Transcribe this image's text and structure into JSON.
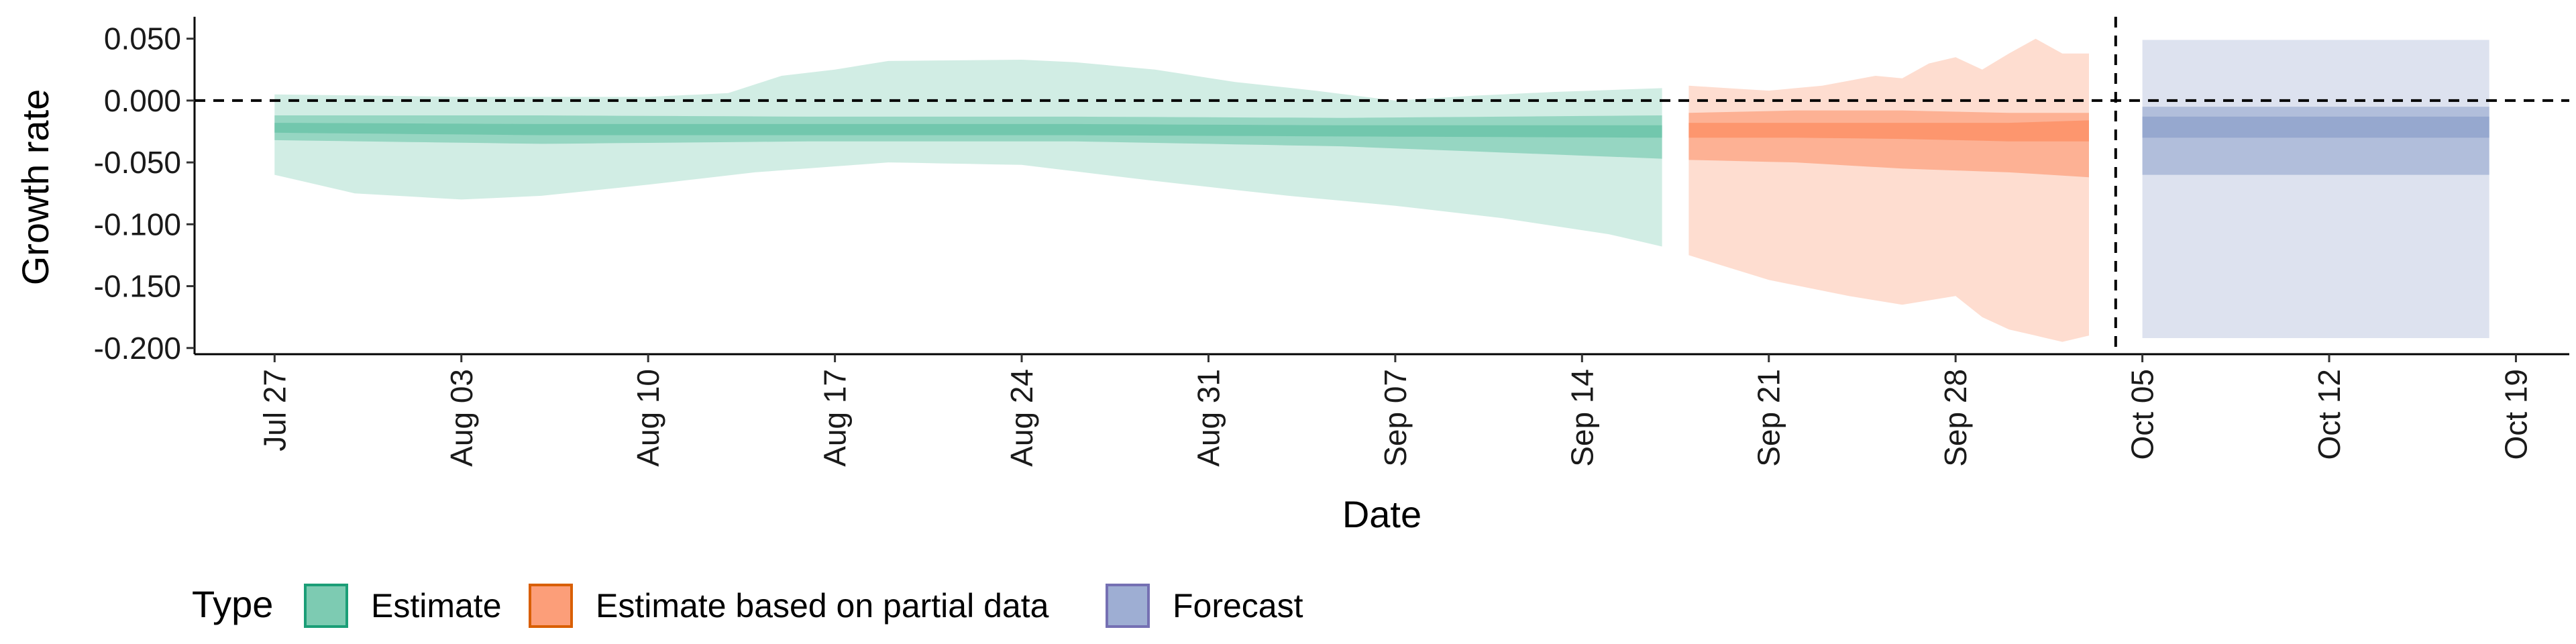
{
  "chart_data": {
    "type": "area",
    "xlabel": "Date",
    "ylabel": "Growth rate",
    "x_axis": {
      "start_date": "2020-07-24",
      "end_date": "2020-10-21",
      "ticks": [
        {
          "date": "2020-07-27",
          "label": "Jul 27"
        },
        {
          "date": "2020-08-03",
          "label": "Aug 03"
        },
        {
          "date": "2020-08-10",
          "label": "Aug 10"
        },
        {
          "date": "2020-08-17",
          "label": "Aug 17"
        },
        {
          "date": "2020-08-24",
          "label": "Aug 24"
        },
        {
          "date": "2020-08-31",
          "label": "Aug 31"
        },
        {
          "date": "2020-09-07",
          "label": "Sep 07"
        },
        {
          "date": "2020-09-14",
          "label": "Sep 14"
        },
        {
          "date": "2020-09-21",
          "label": "Sep 21"
        },
        {
          "date": "2020-09-28",
          "label": "Sep 28"
        },
        {
          "date": "2020-10-05",
          "label": "Oct 05"
        },
        {
          "date": "2020-10-12",
          "label": "Oct 12"
        },
        {
          "date": "2020-10-19",
          "label": "Oct 19"
        }
      ]
    },
    "y_axis": {
      "ylim": [
        -0.205,
        0.065
      ],
      "ticks": [
        {
          "value": 0.05,
          "label": "0.050"
        },
        {
          "value": 0.0,
          "label": "0.000"
        },
        {
          "value": -0.05,
          "label": "-0.050"
        },
        {
          "value": -0.1,
          "label": "-0.100"
        },
        {
          "value": -0.15,
          "label": "-0.150"
        },
        {
          "value": -0.2,
          "label": "-0.200"
        }
      ]
    },
    "reference_lines": {
      "horizontal_y": 0.0,
      "vertical_date": "2020-10-04",
      "style": "dashed"
    },
    "legend": {
      "title": "Type",
      "position": "bottom",
      "items": [
        {
          "label": "Estimate",
          "color": "#66c2a5",
          "stroke": "#1b9e77"
        },
        {
          "label": "Estimate based on partial data",
          "color": "#fc8d62",
          "stroke": "#d95f02"
        },
        {
          "label": "Forecast",
          "color": "#8da0cb",
          "stroke": "#7570b3"
        }
      ]
    },
    "series": [
      {
        "name": "Estimate",
        "color": "#1b9e77",
        "start_date": "2020-07-27",
        "end_date": "2020-09-17",
        "outer_upper": [
          [
            0,
            0.005
          ],
          [
            7,
            0.003
          ],
          [
            14,
            0.003
          ],
          [
            17,
            0.006
          ],
          [
            19,
            0.02
          ],
          [
            21,
            0.025
          ],
          [
            23,
            0.032
          ],
          [
            28,
            0.033
          ],
          [
            30,
            0.031
          ],
          [
            33,
            0.025
          ],
          [
            36,
            0.015
          ],
          [
            39,
            0.008
          ],
          [
            42,
            0.0
          ],
          [
            45,
            0.004
          ],
          [
            48,
            0.007
          ],
          [
            52,
            0.01
          ]
        ],
        "outer_lower": [
          [
            0,
            -0.06
          ],
          [
            3,
            -0.075
          ],
          [
            7,
            -0.08
          ],
          [
            10,
            -0.077
          ],
          [
            14,
            -0.068
          ],
          [
            18,
            -0.058
          ],
          [
            23,
            -0.05
          ],
          [
            28,
            -0.052
          ],
          [
            33,
            -0.065
          ],
          [
            38,
            -0.077
          ],
          [
            42,
            -0.085
          ],
          [
            46,
            -0.095
          ],
          [
            50,
            -0.108
          ],
          [
            52,
            -0.118
          ]
        ],
        "mid_upper": [
          [
            0,
            -0.012
          ],
          [
            10,
            -0.012
          ],
          [
            20,
            -0.013
          ],
          [
            30,
            -0.013
          ],
          [
            40,
            -0.014
          ],
          [
            46,
            -0.013
          ],
          [
            52,
            -0.012
          ]
        ],
        "mid_lower": [
          [
            0,
            -0.032
          ],
          [
            10,
            -0.035
          ],
          [
            20,
            -0.033
          ],
          [
            30,
            -0.033
          ],
          [
            40,
            -0.037
          ],
          [
            46,
            -0.042
          ],
          [
            52,
            -0.047
          ]
        ],
        "inner_upper": [
          [
            0,
            -0.018
          ],
          [
            10,
            -0.019
          ],
          [
            20,
            -0.019
          ],
          [
            30,
            -0.019
          ],
          [
            40,
            -0.02
          ],
          [
            52,
            -0.02
          ]
        ],
        "inner_lower": [
          [
            0,
            -0.026
          ],
          [
            10,
            -0.028
          ],
          [
            20,
            -0.028
          ],
          [
            30,
            -0.028
          ],
          [
            40,
            -0.029
          ],
          [
            52,
            -0.03
          ]
        ]
      },
      {
        "name": "Estimate based on partial data",
        "color": "#d95f02",
        "start_date": "2020-09-18",
        "end_date": "2020-10-03",
        "outer_upper": [
          [
            0,
            0.012
          ],
          [
            3,
            0.008
          ],
          [
            5,
            0.012
          ],
          [
            7,
            0.02
          ],
          [
            8,
            0.018
          ],
          [
            9,
            0.03
          ],
          [
            10,
            0.035
          ],
          [
            11,
            0.025
          ],
          [
            12,
            0.038
          ],
          [
            13,
            0.05
          ],
          [
            14,
            0.038
          ],
          [
            15,
            0.038
          ],
          [
            16,
            0.045
          ],
          [
            17,
            0.047
          ]
        ],
        "outer_lower": [
          [
            0,
            -0.125
          ],
          [
            3,
            -0.145
          ],
          [
            6,
            -0.158
          ],
          [
            8,
            -0.165
          ],
          [
            10,
            -0.158
          ],
          [
            11,
            -0.175
          ],
          [
            12,
            -0.185
          ],
          [
            13,
            -0.19
          ],
          [
            14,
            -0.195
          ],
          [
            15,
            -0.19
          ],
          [
            17,
            -0.188
          ]
        ],
        "mid_upper": [
          [
            0,
            -0.01
          ],
          [
            4,
            -0.008
          ],
          [
            8,
            -0.008
          ],
          [
            12,
            -0.01
          ],
          [
            15,
            -0.01
          ],
          [
            17,
            -0.008
          ]
        ],
        "mid_lower": [
          [
            0,
            -0.048
          ],
          [
            4,
            -0.05
          ],
          [
            8,
            -0.055
          ],
          [
            12,
            -0.058
          ],
          [
            15,
            -0.062
          ],
          [
            17,
            -0.06
          ]
        ],
        "inner_upper": [
          [
            0,
            -0.018
          ],
          [
            4,
            -0.018
          ],
          [
            8,
            -0.018
          ],
          [
            12,
            -0.018
          ],
          [
            15,
            -0.016
          ],
          [
            17,
            -0.014
          ]
        ],
        "inner_lower": [
          [
            0,
            -0.03
          ],
          [
            4,
            -0.03
          ],
          [
            8,
            -0.031
          ],
          [
            12,
            -0.033
          ],
          [
            15,
            -0.033
          ],
          [
            17,
            -0.03
          ]
        ]
      },
      {
        "name": "Forecast",
        "color": "#7570b3",
        "start_date": "2020-10-05",
        "end_date": "2020-10-18",
        "outer_upper": [
          [
            0,
            0.049
          ],
          [
            13,
            0.049
          ]
        ],
        "outer_lower": [
          [
            0,
            -0.192
          ],
          [
            13,
            -0.192
          ]
        ],
        "mid_upper": [
          [
            0,
            -0.005
          ],
          [
            13,
            -0.005
          ]
        ],
        "mid_lower": [
          [
            0,
            -0.06
          ],
          [
            13,
            -0.06
          ]
        ],
        "inner_upper": [
          [
            0,
            -0.013
          ],
          [
            13,
            -0.013
          ]
        ],
        "inner_lower": [
          [
            0,
            -0.03
          ],
          [
            13,
            -0.03
          ]
        ]
      }
    ]
  }
}
